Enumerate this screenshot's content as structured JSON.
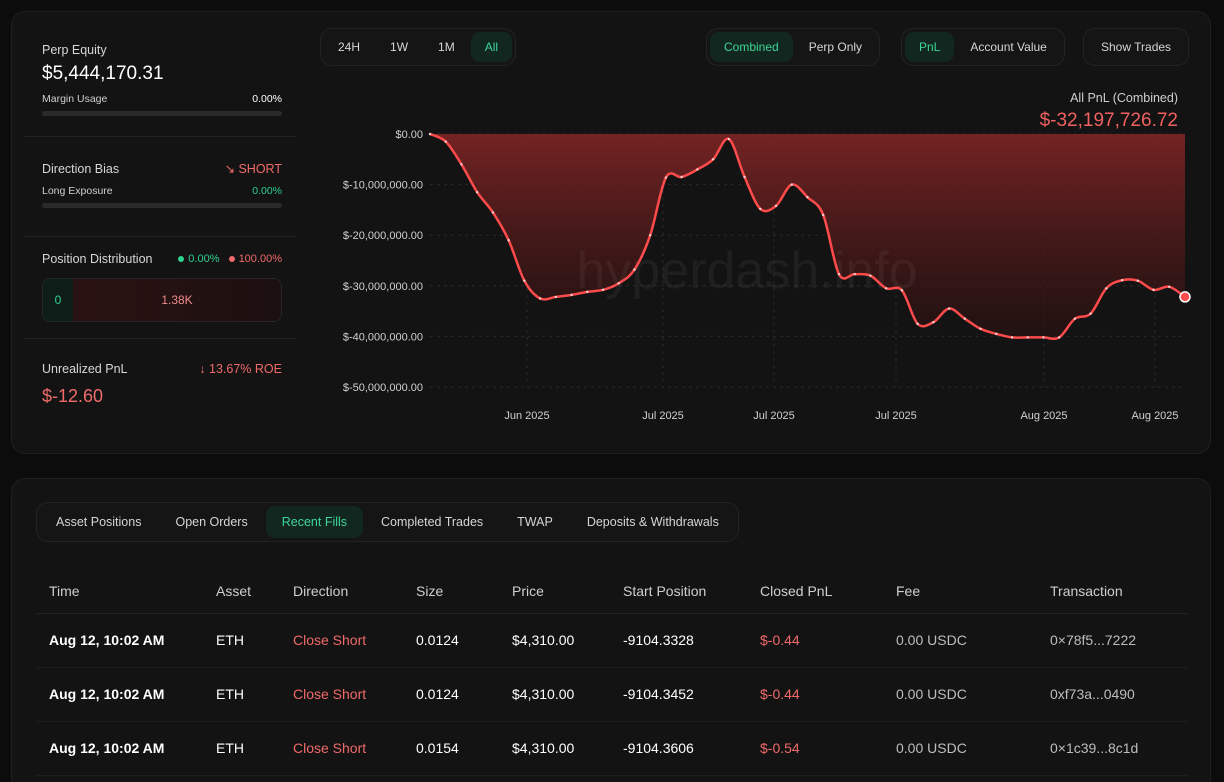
{
  "summary": {
    "perp_equity_label": "Perp Equity",
    "perp_equity_value": "$5,444,170.31",
    "margin_usage_label": "Margin Usage",
    "margin_usage_value": "0.00%",
    "margin_usage_fill": 0.0,
    "direction_bias_label": "Direction Bias",
    "direction_bias_value": "SHORT",
    "long_exposure_label": "Long Exposure",
    "long_exposure_value": "0.00%",
    "long_exposure_fill": 0.0,
    "position_distribution_label": "Position Distribution",
    "long_pct": "0.00%",
    "short_pct": "100.00%",
    "long_count": "0",
    "short_count": "1.38K",
    "unrealized_pnl_label": "Unrealized PnL",
    "roe": "13.67% ROE",
    "unrealized_pnl_value": "$-12.60"
  },
  "range_tabs": [
    "24H",
    "1W",
    "1M",
    "All"
  ],
  "range_active": "All",
  "mode_tabs": [
    "Combined",
    "Perp Only"
  ],
  "mode_active": "Combined",
  "metric_tabs": [
    "PnL",
    "Account Value"
  ],
  "metric_active": "PnL",
  "show_trades_label": "Show Trades",
  "pnl_header": {
    "label": "All PnL (Combined)",
    "value": "$-32,197,726.72"
  },
  "watermark": "hyperdash.info",
  "colors": {
    "accent_green": "#2fd190",
    "negative_red": "#f06060",
    "line_red": "#ff4b4b"
  },
  "chart_data": {
    "type": "area",
    "title": "",
    "xlabel": "",
    "ylabel": "",
    "ylim": [
      -50000000,
      0
    ],
    "y_ticks": [
      "$0.00",
      "$-10,000,000.00",
      "$-20,000,000.00",
      "$-30,000,000.00",
      "$-40,000,000.00",
      "$-50,000,000.00"
    ],
    "x_ticks": [
      "Jun 2025",
      "Jul 2025",
      "Jul 2025",
      "Jul 2025",
      "Aug 2025",
      "Aug 2025"
    ],
    "grid": true,
    "series": [
      {
        "values": [
          0,
          -1500000,
          -6000000,
          -11500000,
          -15500000,
          -21000000,
          -29000000,
          -32500000,
          -32200000,
          -31800000,
          -31200000,
          -30800000,
          -29500000,
          -26800000,
          -20000000,
          -8600000,
          -8500000,
          -7000000,
          -5000000,
          -1000000,
          -8500000,
          -14800000,
          -14200000,
          -10000000,
          -12500000,
          -16000000,
          -27700000,
          -27700000,
          -28000000,
          -30500000,
          -30900000,
          -37500000,
          -37200000,
          -34500000,
          -36500000,
          -38500000,
          -39500000,
          -40200000,
          -40200000,
          -40200000,
          -40200000,
          -36500000,
          -35500000,
          -30500000,
          -28900000,
          -29000000,
          -30800000,
          -30200000,
          -32200000
        ]
      }
    ]
  },
  "tabs": [
    "Asset Positions",
    "Open Orders",
    "Recent Fills",
    "Completed Trades",
    "TWAP",
    "Deposits & Withdrawals"
  ],
  "tabs_active": "Recent Fills",
  "fills": {
    "columns": [
      "Time",
      "Asset",
      "Direction",
      "Size",
      "Price",
      "Start Position",
      "Closed PnL",
      "Fee",
      "Transaction"
    ],
    "rows": [
      {
        "time": "Aug 12, 10:02 AM",
        "asset": "ETH",
        "direction": "Close Short",
        "size": "0.0124",
        "price": "$4,310.00",
        "start_position": "-9104.3328",
        "closed_pnl": "$-0.44",
        "fee": "0.00 USDC",
        "tx": "0×78f5...7222"
      },
      {
        "time": "Aug 12, 10:02 AM",
        "asset": "ETH",
        "direction": "Close Short",
        "size": "0.0124",
        "price": "$4,310.00",
        "start_position": "-9104.3452",
        "closed_pnl": "$-0.44",
        "fee": "0.00 USDC",
        "tx": "0xf73a...0490"
      },
      {
        "time": "Aug 12, 10:02 AM",
        "asset": "ETH",
        "direction": "Close Short",
        "size": "0.0154",
        "price": "$4,310.00",
        "start_position": "-9104.3606",
        "closed_pnl": "$-0.54",
        "fee": "0.00 USDC",
        "tx": "0×1c39...8c1d"
      }
    ]
  }
}
